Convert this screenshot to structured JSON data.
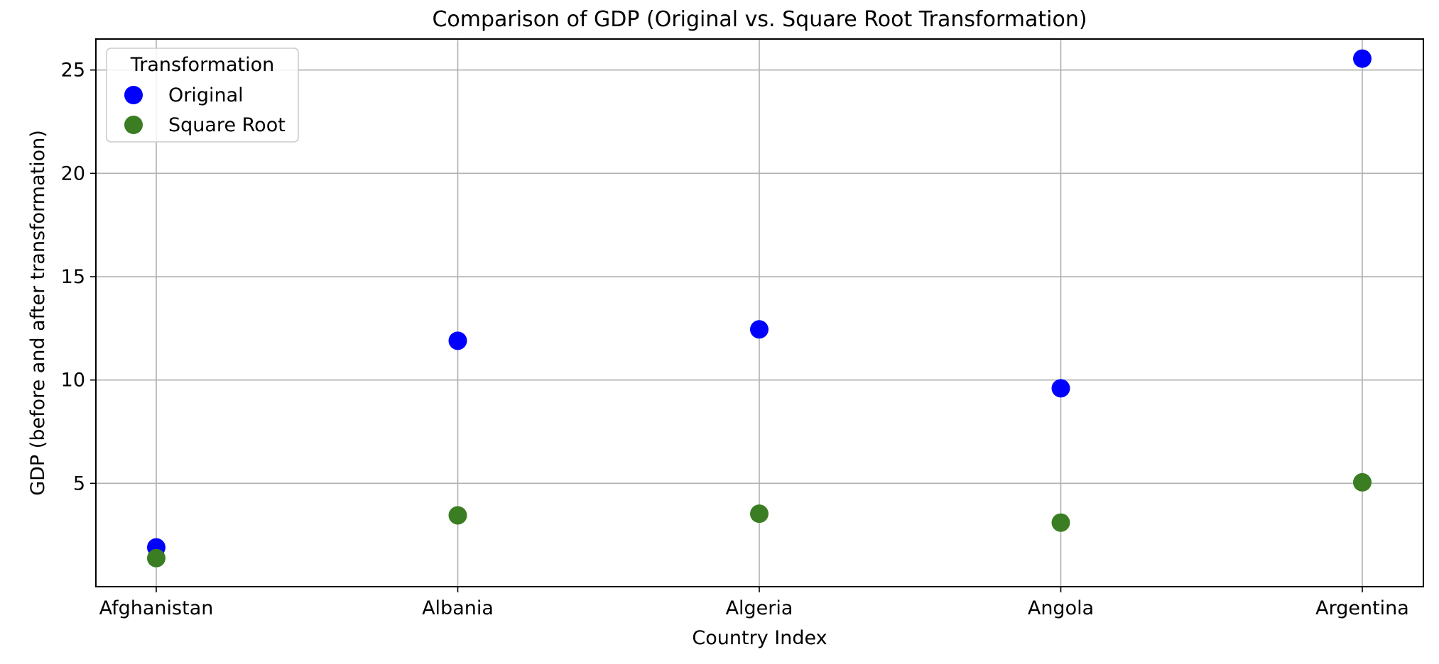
{
  "chart_data": {
    "type": "scatter",
    "title": "Comparison of GDP (Original vs. Square Root Transformation)",
    "xlabel": "Country Index",
    "ylabel": "GDP (before and after transformation)",
    "categories": [
      "Afghanistan",
      "Albania",
      "Algeria",
      "Angola",
      "Argentina"
    ],
    "ylim": [
      0.0,
      26.5
    ],
    "yticks": [
      5,
      10,
      15,
      20,
      25
    ],
    "grid": true,
    "legend": {
      "title": "Transformation",
      "position": "top-left"
    },
    "series": [
      {
        "name": "Original",
        "color": "#0000ff",
        "values": [
          1.9,
          11.9,
          12.45,
          9.6,
          25.55
        ]
      },
      {
        "name": "Square Root",
        "color": "#3a7d22",
        "values": [
          1.38,
          3.45,
          3.53,
          3.1,
          5.05
        ]
      }
    ]
  }
}
